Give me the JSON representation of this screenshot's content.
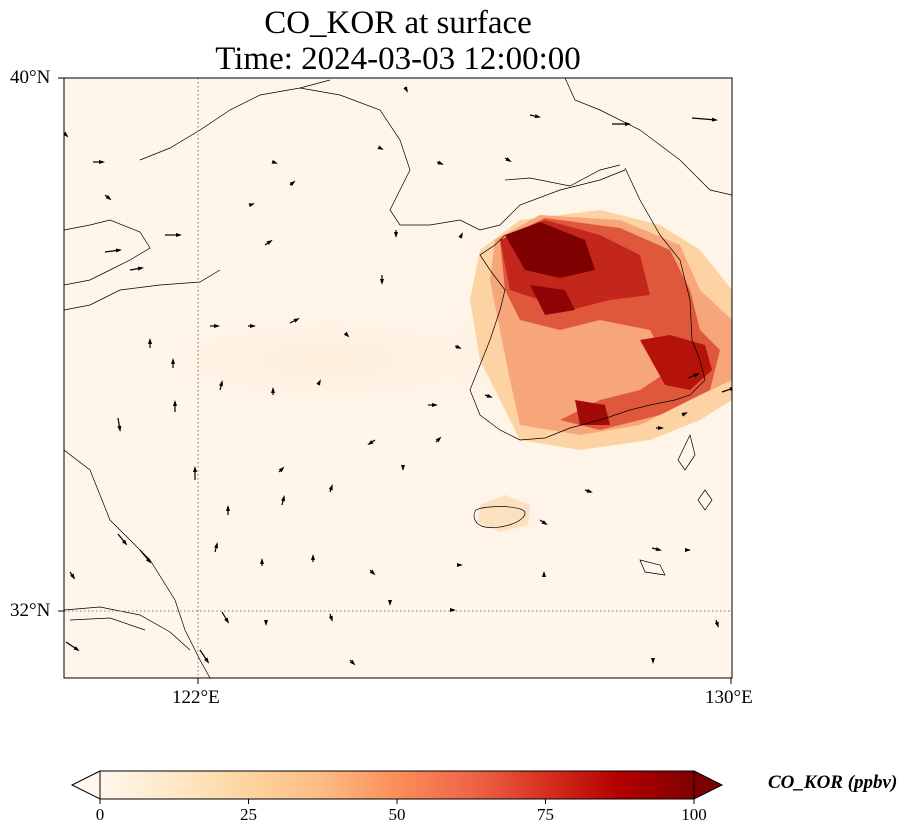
{
  "title": {
    "line1": "CO_KOR at surface",
    "line2": "Time: 2024-03-03 12:00:00"
  },
  "map": {
    "extent": {
      "lon_min": 119.6,
      "lon_max": 130.0,
      "lat_min": 31.0,
      "lat_max": 40.0
    },
    "gridlines": {
      "style": "dotted",
      "lons": [
        122,
        130
      ],
      "lats": [
        32,
        40
      ]
    },
    "lat_labels": [
      {
        "value": 40,
        "text": "40°N"
      },
      {
        "value": 32,
        "text": "32°N"
      }
    ],
    "lon_labels": [
      {
        "value": 122,
        "text": "122°E"
      },
      {
        "value": 130,
        "text": "130°E"
      }
    ],
    "background_color": "#fff5ea",
    "coastline_color": "#000000",
    "wind_vectors": "black arrows"
  },
  "colorbar": {
    "label": "CO_KOR (ppbv)",
    "colormap": "OrRd",
    "min": 0,
    "max": 100,
    "extend": "both",
    "ticks": [
      {
        "value": 0,
        "text": "0"
      },
      {
        "value": 25,
        "text": "25"
      },
      {
        "value": 50,
        "text": "50"
      },
      {
        "value": 75,
        "text": "75"
      },
      {
        "value": 100,
        "text": "100"
      }
    ],
    "stops": [
      "#fff7ec",
      "#fee8c8",
      "#fdd49e",
      "#fdbb84",
      "#fc8d59",
      "#ef6548",
      "#d7301f",
      "#b30000",
      "#7f0000"
    ]
  }
}
